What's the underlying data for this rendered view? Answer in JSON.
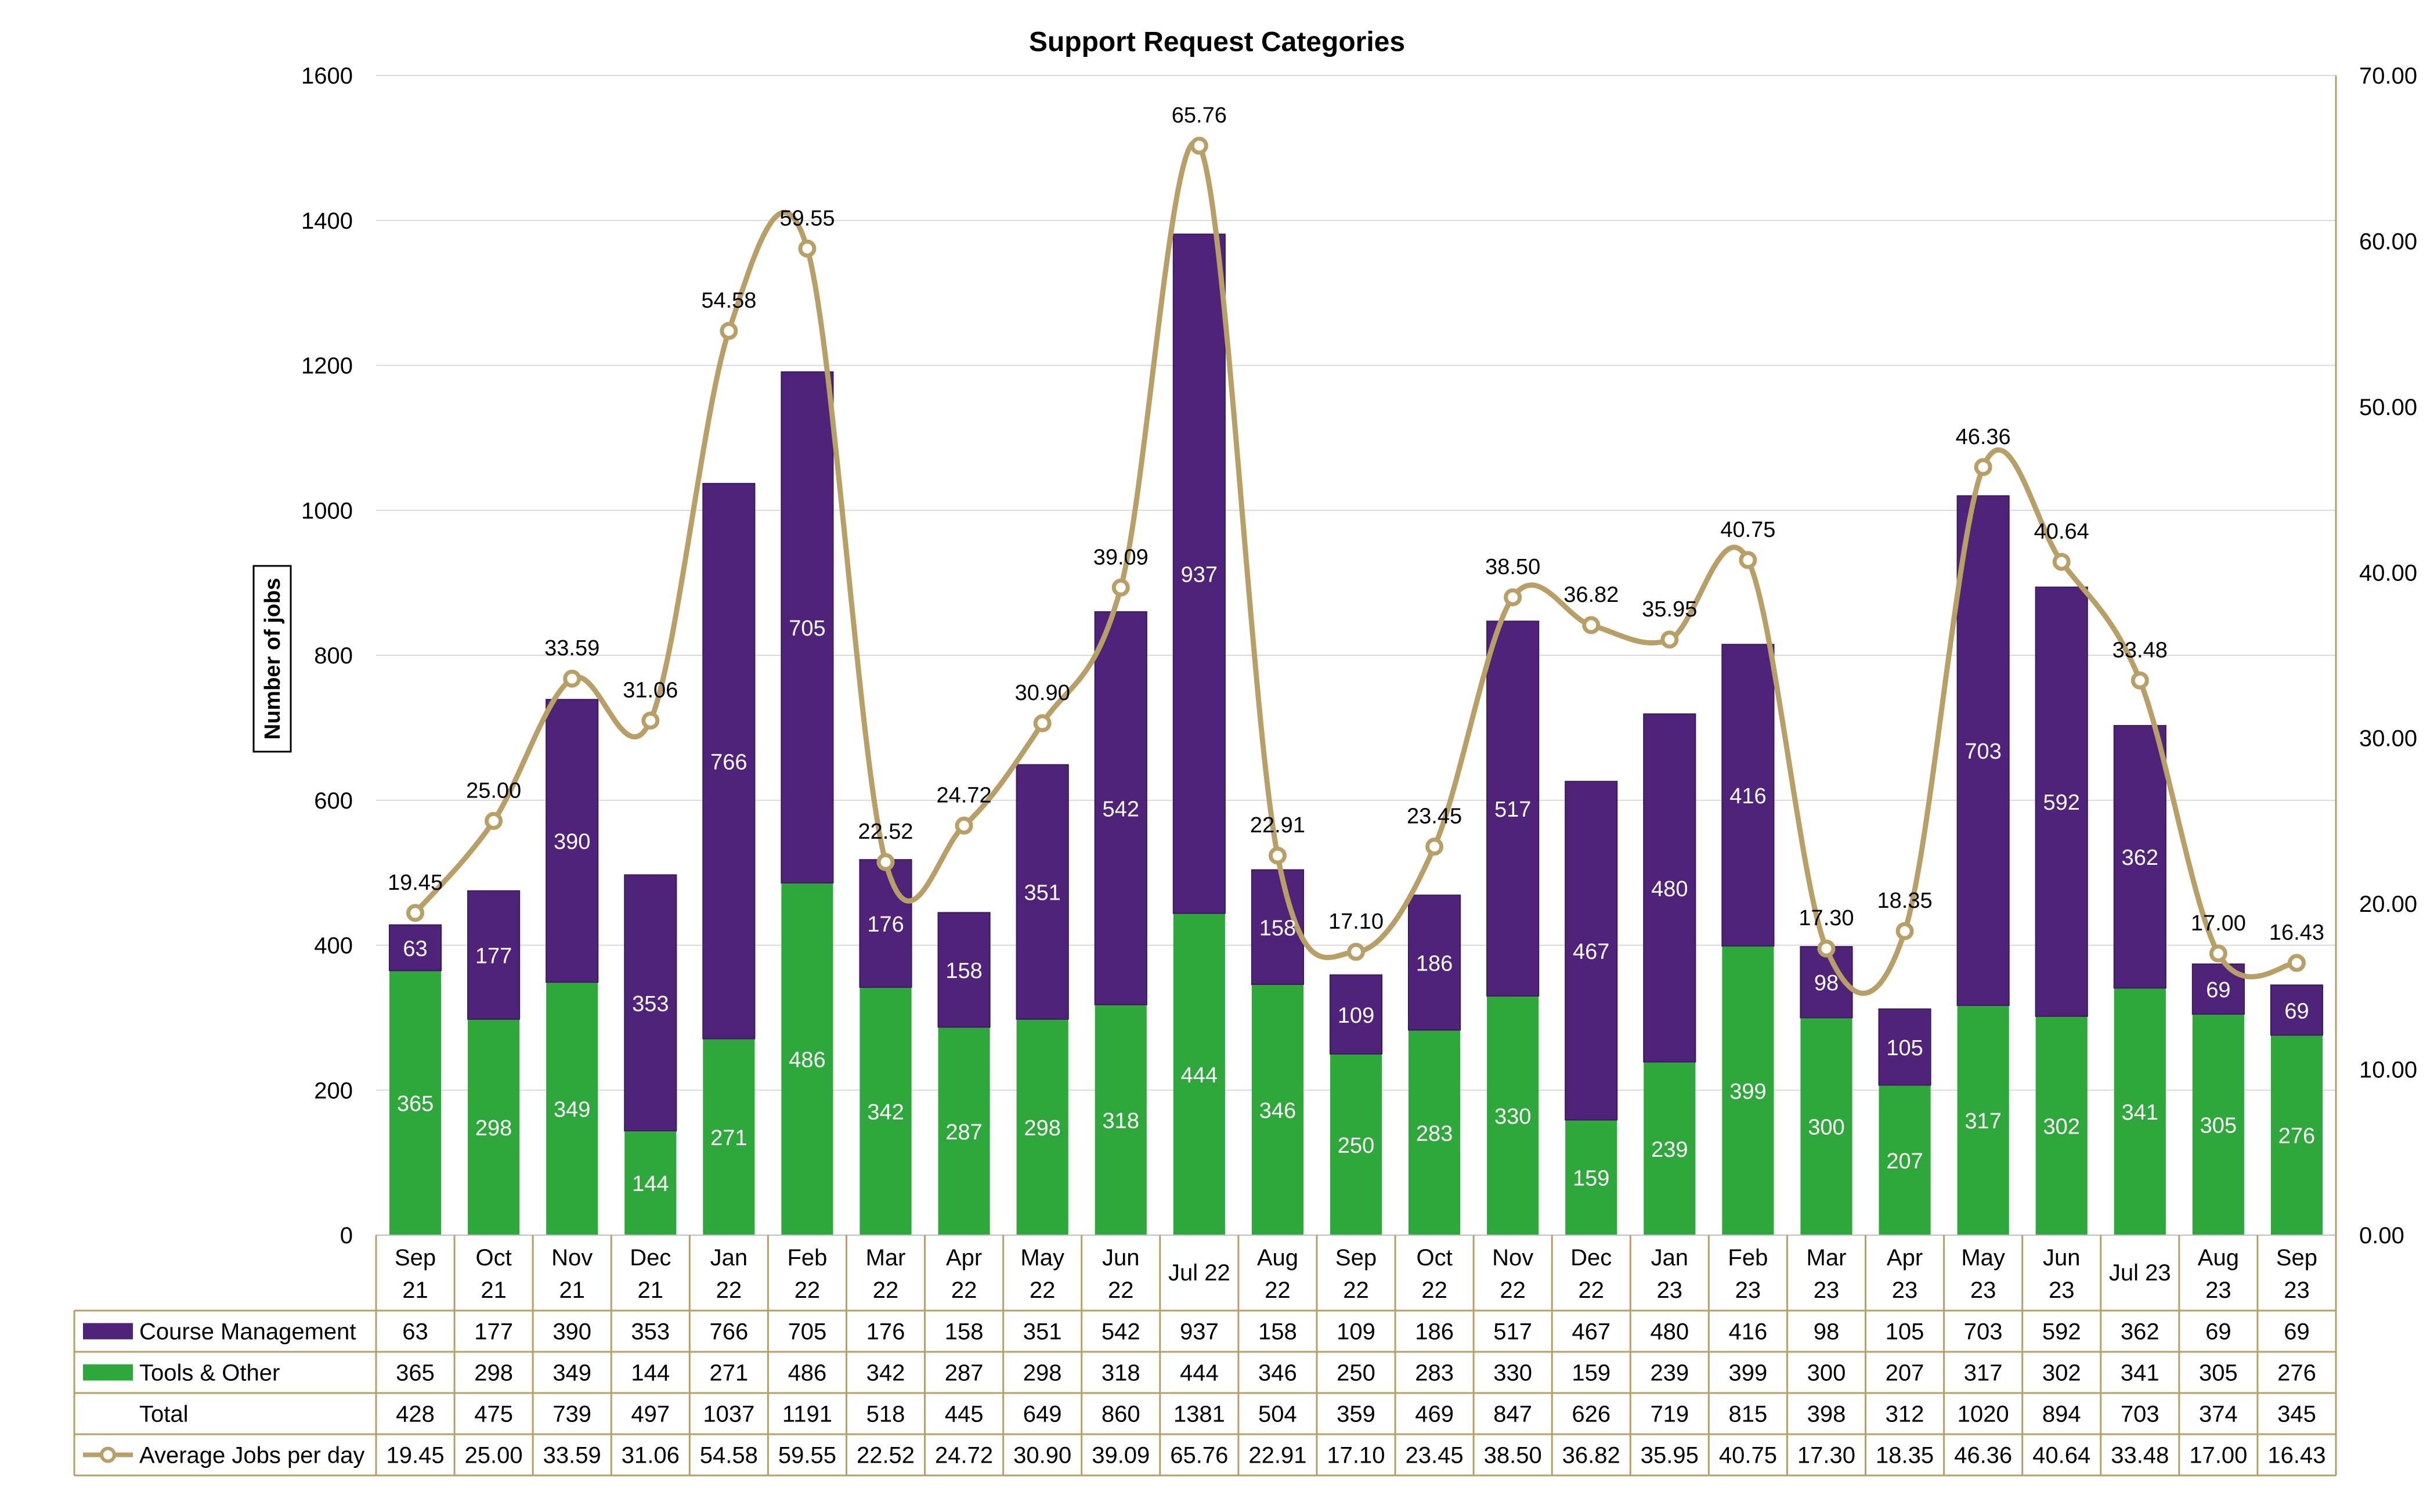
{
  "chart_data": {
    "type": "bar",
    "title": "Support Request Categories",
    "ylabel": "Number of jobs",
    "ylim": [
      0,
      1600
    ],
    "y_ticks": [
      "0",
      "200",
      "400",
      "600",
      "800",
      "1000",
      "1200",
      "1400",
      "1600"
    ],
    "y2lim": [
      0,
      70
    ],
    "y2_ticks": [
      "0.00",
      "10.00",
      "20.00",
      "30.00",
      "40.00",
      "50.00",
      "60.00",
      "70.00"
    ],
    "stacked": true,
    "grid": true,
    "legend": "data-table",
    "categories": [
      [
        "Sep",
        "21"
      ],
      [
        "Oct",
        "21"
      ],
      [
        "Nov",
        "21"
      ],
      [
        "Dec",
        "21"
      ],
      [
        "Jan",
        "22"
      ],
      [
        "Feb",
        "22"
      ],
      [
        "Mar",
        "22"
      ],
      [
        "Apr",
        "22"
      ],
      [
        "May",
        "22"
      ],
      [
        "Jun",
        "22"
      ],
      [
        "Jul 22"
      ],
      [
        "Aug",
        "22"
      ],
      [
        "Sep",
        "22"
      ],
      [
        "Oct",
        "22"
      ],
      [
        "Nov",
        "22"
      ],
      [
        "Dec",
        "22"
      ],
      [
        "Jan",
        "23"
      ],
      [
        "Feb",
        "23"
      ],
      [
        "Mar",
        "23"
      ],
      [
        "Apr",
        "23"
      ],
      [
        "May",
        "23"
      ],
      [
        "Jun",
        "23"
      ],
      [
        "Jul 23"
      ],
      [
        "Aug",
        "23"
      ],
      [
        "Sep",
        "23"
      ]
    ],
    "series": [
      {
        "name": "Course Management",
        "type": "bar",
        "color": "#4f2379",
        "values": [
          63,
          177,
          390,
          353,
          766,
          705,
          176,
          158,
          351,
          542,
          937,
          158,
          109,
          186,
          517,
          467,
          480,
          416,
          98,
          105,
          703,
          592,
          362,
          69,
          69
        ]
      },
      {
        "name": "Tools & Other",
        "type": "bar",
        "color": "#2ea83a",
        "values": [
          365,
          298,
          349,
          144,
          271,
          486,
          342,
          287,
          298,
          318,
          444,
          346,
          250,
          283,
          330,
          159,
          239,
          399,
          300,
          207,
          317,
          302,
          341,
          305,
          276
        ]
      },
      {
        "name": "Average Jobs per day",
        "type": "line",
        "axis": "secondary",
        "color": "#b79f66",
        "values": [
          "19.45",
          "25.00",
          "33.59",
          "31.06",
          "54.58",
          "59.55",
          "22.52",
          "24.72",
          "30.90",
          "39.09",
          "65.76",
          "22.91",
          "17.10",
          "23.45",
          "38.50",
          "36.82",
          "35.95",
          "40.75",
          "17.30",
          "18.35",
          "46.36",
          "40.64",
          "33.48",
          "17.00",
          "16.43"
        ]
      }
    ],
    "table": {
      "total_label": "Total",
      "totals": [
        428,
        475,
        739,
        497,
        1037,
        1191,
        518,
        445,
        649,
        860,
        1381,
        504,
        359,
        469,
        847,
        626,
        719,
        815,
        398,
        312,
        1020,
        894,
        703,
        374,
        345
      ]
    }
  }
}
